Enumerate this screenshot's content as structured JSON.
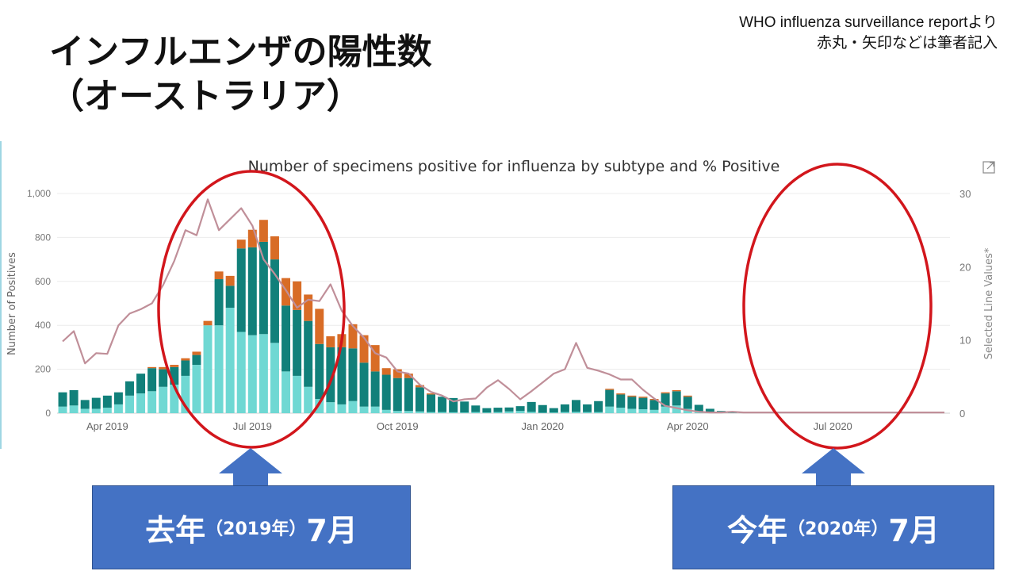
{
  "slide": {
    "title_line1": "インフルエンザの陽性数",
    "title_line2": "（オーストラリア）",
    "source_line1": "WHO influenza surveillance reportより",
    "source_line2": "赤丸・矢印などは筆者記入"
  },
  "colors": {
    "series_light": "#6fd8d3",
    "series_teal": "#11807a",
    "series_orange": "#d86c26",
    "line_percent": "#c08f99",
    "annotation_red": "#d2161c",
    "callout_blue": "#4472c4"
  },
  "chart_data": {
    "type": "bar",
    "stacked": true,
    "title": "Number of specimens positive for influenza by subtype and % Positive",
    "ylabel": "Number of Positives",
    "y2label": "Selected Line Values*",
    "ylim": [
      0,
      1000
    ],
    "y2lim": [
      0,
      30
    ],
    "yticks": [
      "0",
      "200",
      "400",
      "600",
      "800",
      "1,000"
    ],
    "y2ticks": [
      "0",
      "10",
      "20",
      "30"
    ],
    "xticks": [
      {
        "week": 4,
        "label": "Apr 2019"
      },
      {
        "week": 17,
        "label": "Jul 2019"
      },
      {
        "week": 30,
        "label": "Oct 2019"
      },
      {
        "week": 43,
        "label": "Jan 2020"
      },
      {
        "week": 56,
        "label": "Apr 2020"
      },
      {
        "week": 69,
        "label": "Jul 2020"
      }
    ],
    "grid": true,
    "weeks": 80,
    "series": [
      {
        "values": [
          30,
          35,
          20,
          20,
          25,
          40,
          80,
          90,
          100,
          120,
          130,
          170,
          220,
          400,
          400,
          480,
          370,
          355,
          360,
          320,
          190,
          170,
          120,
          65,
          50,
          40,
          55,
          30,
          30,
          15,
          10,
          10,
          8,
          5,
          5,
          4,
          3,
          5,
          3,
          5,
          8,
          10,
          6,
          2,
          3,
          5,
          6,
          5,
          5,
          30,
          25,
          20,
          18,
          15,
          30,
          35,
          20,
          8,
          4,
          2,
          1,
          0,
          0,
          0,
          0,
          0,
          0,
          0,
          0,
          0,
          0,
          0,
          0,
          0,
          0,
          0,
          0,
          0,
          0,
          0
        ]
      },
      {
        "values": [
          65,
          70,
          40,
          50,
          55,
          55,
          65,
          90,
          105,
          80,
          80,
          70,
          45,
          0,
          210,
          100,
          380,
          400,
          420,
          380,
          300,
          300,
          300,
          250,
          250,
          260,
          240,
          200,
          160,
          160,
          150,
          150,
          110,
          80,
          70,
          65,
          50,
          30,
          20,
          20,
          18,
          22,
          45,
          35,
          20,
          35,
          54,
          35,
          50,
          76,
          60,
          55,
          52,
          45,
          60,
          65,
          55,
          30,
          16,
          8,
          5,
          1,
          0,
          0,
          0,
          0,
          0,
          0,
          0,
          0,
          0,
          0,
          0,
          0,
          0,
          0,
          0,
          0,
          0,
          0
        ]
      },
      {
        "values": [
          0,
          0,
          0,
          0,
          0,
          0,
          0,
          0,
          5,
          10,
          10,
          10,
          15,
          20,
          35,
          45,
          40,
          80,
          100,
          105,
          125,
          130,
          120,
          160,
          50,
          60,
          110,
          125,
          120,
          30,
          40,
          20,
          10,
          5,
          0,
          0,
          0,
          0,
          0,
          0,
          0,
          0,
          0,
          0,
          0,
          0,
          0,
          0,
          0,
          5,
          5,
          5,
          5,
          5,
          5,
          5,
          5,
          0,
          0,
          0,
          0,
          0,
          0,
          0,
          0,
          0,
          0,
          0,
          0,
          0,
          0,
          0,
          0,
          0,
          0,
          0,
          0,
          0,
          0,
          0
        ]
      }
    ],
    "line_percent": [
      9.8,
      11.2,
      6.8,
      8.2,
      8.1,
      12.0,
      13.6,
      14.2,
      15.0,
      17.5,
      20.8,
      25.0,
      24.3,
      29.2,
      25.0,
      26.5,
      28.0,
      25.6,
      21.0,
      19.0,
      16.8,
      14.4,
      15.5,
      15.3,
      17.6,
      14.0,
      11.9,
      10.3,
      8.2,
      7.6,
      5.7,
      5.4,
      3.9,
      2.9,
      2.4,
      1.6,
      1.9,
      2.0,
      3.5,
      4.5,
      3.3,
      1.9,
      3.0,
      4.2,
      5.4,
      6.0,
      9.6,
      6.2,
      5.8,
      5.3,
      4.6,
      4.6,
      3.2,
      2.0,
      1.0,
      0.7,
      0.4,
      0.2,
      0.1,
      0.1,
      0.2,
      0.1,
      0.1,
      0.1,
      0.1,
      0.1,
      0.1,
      0.1,
      0.1,
      0.1,
      0.1,
      0.1,
      0.1,
      0.1,
      0.1,
      0.1,
      0.1,
      0.1,
      0.1,
      0.1
    ]
  },
  "callouts": {
    "left_main": "去年",
    "left_small": "（2019年）",
    "left_month": "7月",
    "right_main": "今年",
    "right_small": "（2020年）",
    "right_month": "7月"
  }
}
